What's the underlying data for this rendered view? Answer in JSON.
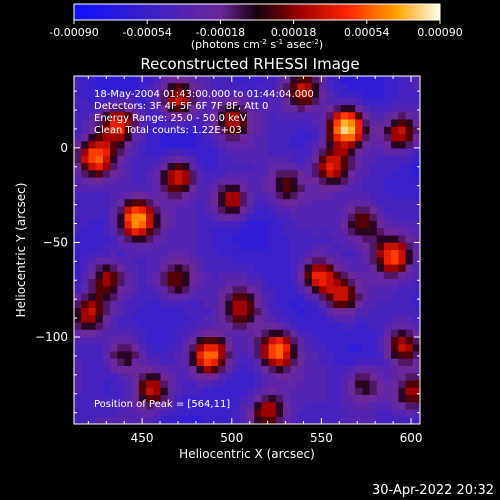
{
  "chart_data": {
    "type": "heatmap",
    "title": "Reconstructed RHESSI Image",
    "xlabel": "Heliocentric X (arcsec)",
    "ylabel": "Heliocentric Y (arcsec)",
    "xlim": [
      412,
      605
    ],
    "ylim": [
      -146,
      38
    ],
    "x_ticks": [
      450,
      500,
      550,
      600
    ],
    "y_ticks": [
      0,
      -50,
      -100
    ],
    "colorbar": {
      "range": [
        -0.0009,
        0.0009
      ],
      "ticks": [
        "-0.00090",
        "-0.00054",
        "-0.00018",
        "0.00018",
        "0.00054",
        "0.00090"
      ],
      "unit_base": "(photons cm",
      "unit_exp1": "-2",
      "unit_mid1": " s",
      "unit_exp2": "-1",
      "unit_mid2": " asec",
      "unit_exp3": "-2",
      "unit_end": ")"
    },
    "annotations": [
      "18-May-2004 01:43:00.000 to 01:44:04.000",
      "Detectors: 3F 4F 5F 6F 7F 8F, Att 0",
      "Energy Range: 25.0 - 50.0 keV",
      "Clean     Total counts: 1.22E+03"
    ],
    "peak_label": "Position of Peak = [564,11]",
    "peak": {
      "x": 564,
      "y": 11
    },
    "hotspots": [
      {
        "x": 564,
        "y": 11,
        "v": 1.0
      },
      {
        "x": 447,
        "y": -38,
        "v": 0.9
      },
      {
        "x": 488,
        "y": -110,
        "v": 0.8
      },
      {
        "x": 525,
        "y": -107,
        "v": 0.75
      },
      {
        "x": 424,
        "y": -5,
        "v": 0.7
      },
      {
        "x": 437,
        "y": 13,
        "v": 0.65
      },
      {
        "x": 470,
        "y": -15,
        "v": 0.7
      },
      {
        "x": 500,
        "y": -28,
        "v": 0.65
      },
      {
        "x": 556,
        "y": -10,
        "v": 0.6
      },
      {
        "x": 548,
        "y": -68,
        "v": 0.7
      },
      {
        "x": 561,
        "y": -78,
        "v": 0.55
      },
      {
        "x": 590,
        "y": -57,
        "v": 0.7
      },
      {
        "x": 595,
        "y": 8,
        "v": 0.65
      },
      {
        "x": 540,
        "y": 30,
        "v": 0.55
      },
      {
        "x": 500,
        "y": 15,
        "v": 0.5
      },
      {
        "x": 455,
        "y": -128,
        "v": 0.6
      },
      {
        "x": 420,
        "y": -88,
        "v": 0.6
      },
      {
        "x": 430,
        "y": -70,
        "v": 0.5
      },
      {
        "x": 520,
        "y": -140,
        "v": 0.55
      },
      {
        "x": 595,
        "y": -105,
        "v": 0.6
      },
      {
        "x": 600,
        "y": -130,
        "v": 0.55
      },
      {
        "x": 470,
        "y": -70,
        "v": 0.5
      },
      {
        "x": 505,
        "y": -85,
        "v": 0.45
      },
      {
        "x": 573,
        "y": -40,
        "v": 0.5
      },
      {
        "x": 440,
        "y": -110,
        "v": 0.5
      },
      {
        "x": 470,
        "y": 25,
        "v": 0.55
      },
      {
        "x": 575,
        "y": -125,
        "v": 0.5
      },
      {
        "x": 530,
        "y": -20,
        "v": 0.45
      }
    ]
  },
  "footer": {
    "timestamp": "30-Apr-2022 20:32"
  }
}
